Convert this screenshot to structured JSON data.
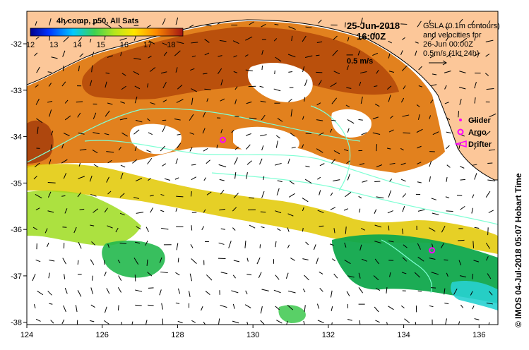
{
  "map": {
    "colorbar": {
      "title": "4h comp, p50, All Sats",
      "tick_labels": [
        "12",
        "13",
        "14",
        "15",
        "16",
        "17",
        "18"
      ],
      "range": [
        12,
        18.5
      ]
    },
    "datetime": {
      "date": "25-Jun-2018",
      "time": "16:00Z"
    },
    "gsla_note": {
      "line1": "GSLA (0.1m contours)",
      "line2": "and velocities for",
      "line3": "26-Jun 00:00Z",
      "line4": "0.5m/s (1kt 24h)"
    },
    "scale_label": "0.5 m/s",
    "legend": {
      "glider": "Glider",
      "argo": "Argo",
      "drifter": "Drifter"
    },
    "credit": "© IMOS 04-Jul-2018 05:07 Hobart Time",
    "axes": {
      "x_ticks": [
        "124",
        "126",
        "128",
        "130",
        "132",
        "134",
        "136"
      ],
      "y_ticks": [
        "-32",
        "-33",
        "-34",
        "-35",
        "-36",
        "-37",
        "-38"
      ],
      "x_range": [
        124,
        136.5
      ],
      "y_range": [
        -38.05,
        -31.3
      ]
    },
    "argo_floats": [
      {
        "lon": 129.2,
        "lat": -34.07
      },
      {
        "lon": 134.75,
        "lat": -36.45
      }
    ],
    "colors": {
      "land": "#fcc799",
      "no_data": "#ffffff",
      "contour": "#7fffd4",
      "argo": "#ff00ff",
      "vector": "#000000",
      "sst_warm": "#b64a0a",
      "sst_cool": "#10a84c"
    }
  }
}
